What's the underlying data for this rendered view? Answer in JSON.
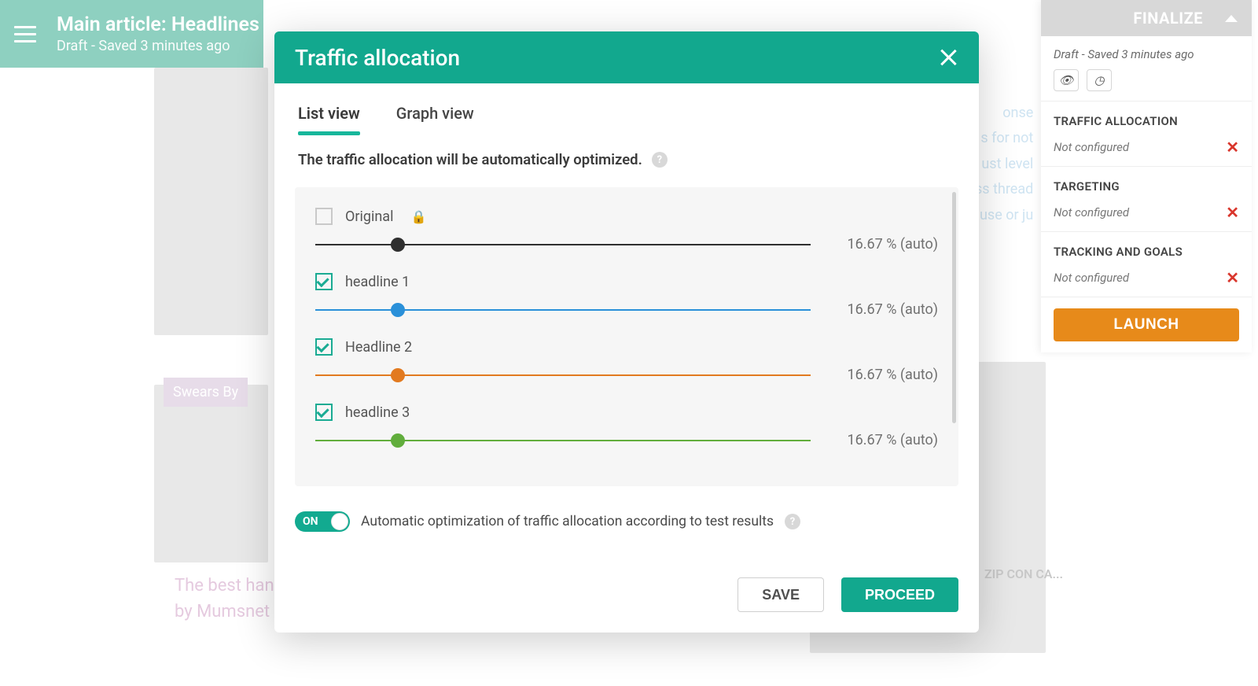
{
  "background": {
    "header_title": "Main article: Headlines",
    "header_sub": "Draft - Saved 3 minutes ago",
    "swears_tag": "Swears By",
    "caption_line1": "The best han",
    "caption_line2": "by Mumsnet",
    "blue_lines": [
      "onse",
      "s for not",
      "ust level",
      "ss thread",
      "use or ju"
    ],
    "zip_label": "ZIP CON CA..."
  },
  "finalize": {
    "head_label": "FINALIZE",
    "status_text": "Draft - Saved 3 minutes ago",
    "sections": [
      {
        "title": "TRAFFIC ALLOCATION",
        "sub": "Not configured"
      },
      {
        "title": "TARGETING",
        "sub": "Not configured"
      },
      {
        "title": "TRACKING AND GOALS",
        "sub": "Not configured"
      }
    ],
    "launch_label": "LAUNCH"
  },
  "modal": {
    "title": "Traffic allocation",
    "tabs": {
      "list": "List view",
      "graph": "Graph view"
    },
    "description": "The traffic allocation will be automatically optimized.",
    "sliders": [
      {
        "label": "Original",
        "checked": false,
        "locked": true,
        "color": "#2f2f2f",
        "thumb": "#2f2f2f",
        "pos_pct": 16.67,
        "value_label": "16.67 % (auto)"
      },
      {
        "label": "headline 1",
        "checked": true,
        "locked": false,
        "color": "#2a90d9",
        "thumb": "#2a90d9",
        "pos_pct": 16.67,
        "value_label": "16.67 % (auto)"
      },
      {
        "label": "Headline 2",
        "checked": true,
        "locked": false,
        "color": "#e27a20",
        "thumb": "#e27a20",
        "pos_pct": 16.67,
        "value_label": "16.67 % (auto)"
      },
      {
        "label": "headline 3",
        "checked": true,
        "locked": false,
        "color": "#61ad3c",
        "thumb": "#61ad3c",
        "pos_pct": 16.67,
        "value_label": "16.67 % (auto)"
      }
    ],
    "toggle": {
      "state_label": "ON",
      "text": "Automatic optimization of traffic allocation according to test results"
    },
    "buttons": {
      "save": "SAVE",
      "proceed": "PROCEED"
    }
  },
  "colors": {
    "brand_teal": "#12a88e",
    "brand_orange": "#e78a1a"
  }
}
